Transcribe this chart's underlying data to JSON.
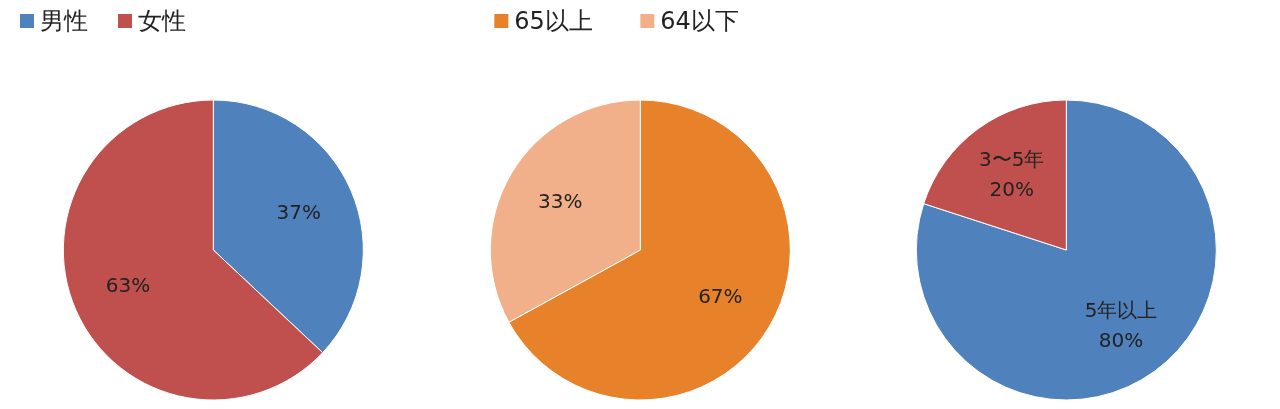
{
  "chart_data": [
    {
      "type": "pie",
      "categories": [
        "男性",
        "女性"
      ],
      "values": [
        37,
        63
      ],
      "colors": [
        "#4f81bd",
        "#c0504d"
      ],
      "value_labels": [
        "37%",
        "63%"
      ],
      "legend": "top left"
    },
    {
      "type": "pie",
      "categories": [
        "65以上",
        "64以下"
      ],
      "values": [
        67,
        33
      ],
      "colors": [
        "#e8822a",
        "#f2b08a"
      ],
      "value_labels": [
        "67%",
        "33%"
      ],
      "legend": "top"
    },
    {
      "type": "pie",
      "categories": [
        "5年以上",
        "3〜5年"
      ],
      "values": [
        80,
        20
      ],
      "colors": [
        "#4f81bd",
        "#c0504d"
      ],
      "value_labels": [
        "80%",
        "20%"
      ],
      "legend": false
    }
  ]
}
